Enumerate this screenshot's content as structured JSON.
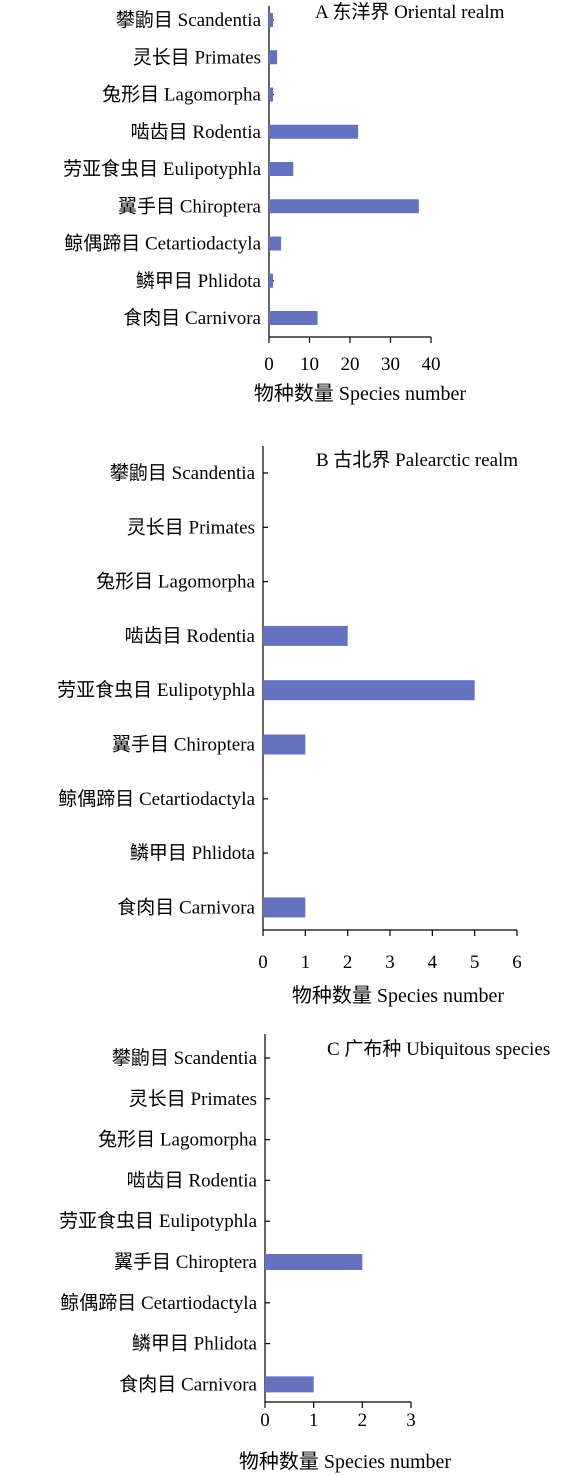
{
  "chart_data": [
    {
      "type": "bar",
      "orientation": "horizontal",
      "title": "A 东洋界 Oriental realm",
      "categories": [
        "攀鼩目 Scandentia",
        "灵长目 Primates",
        "兔形目 Lagomorpha",
        "啮齿目 Rodentia",
        "劳亚食虫目 Eulipotyphla",
        "翼手目 Chiroptera",
        "鲸偶蹄目 Cetartiodactyla",
        "鳞甲目 Phlidota",
        "食肉目 Carnivora"
      ],
      "values": [
        1,
        2,
        1,
        22,
        6,
        37,
        3,
        1,
        12
      ],
      "xlabel": "物种数量 Species number",
      "xlim": [
        0,
        40
      ],
      "xticks": [
        "0",
        "10",
        "20",
        "30",
        "40"
      ],
      "bar_color": "#6472c0",
      "grid": false
    },
    {
      "type": "bar",
      "orientation": "horizontal",
      "title": "B 古北界 Palearctic realm",
      "categories": [
        "攀鼩目 Scandentia",
        "灵长目 Primates",
        "兔形目 Lagomorpha",
        "啮齿目 Rodentia",
        "劳亚食虫目 Eulipotyphla",
        "翼手目 Chiroptera",
        "鲸偶蹄目 Cetartiodactyla",
        "鳞甲目 Phlidota",
        "食肉目 Carnivora"
      ],
      "values": [
        0,
        0,
        0,
        2,
        5,
        1,
        0,
        0,
        1
      ],
      "xlabel": "物种数量 Species number",
      "xlim": [
        0,
        6
      ],
      "xticks": [
        "0",
        "1",
        "2",
        "3",
        "4",
        "5",
        "6"
      ],
      "bar_color": "#6472c0",
      "grid": false
    },
    {
      "type": "bar",
      "orientation": "horizontal",
      "title": "C 广布种 Ubiquitous species",
      "categories": [
        "攀鼩目 Scandentia",
        "灵长目 Primates",
        "兔形目 Lagomorpha",
        "啮齿目 Rodentia",
        "劳亚食虫目 Eulipotyphla",
        "翼手目 Chiroptera",
        "鲸偶蹄目 Cetartiodactyla",
        "鳞甲目 Phlidota",
        "食肉目 Carnivora"
      ],
      "values": [
        0,
        0,
        0,
        0,
        0,
        2,
        0,
        0,
        1
      ],
      "xlabel": "物种数量 Species number",
      "xlim": [
        0,
        3
      ],
      "xticks": [
        "0",
        "1",
        "2",
        "3"
      ],
      "bar_color": "#6472c0",
      "grid": false
    }
  ]
}
